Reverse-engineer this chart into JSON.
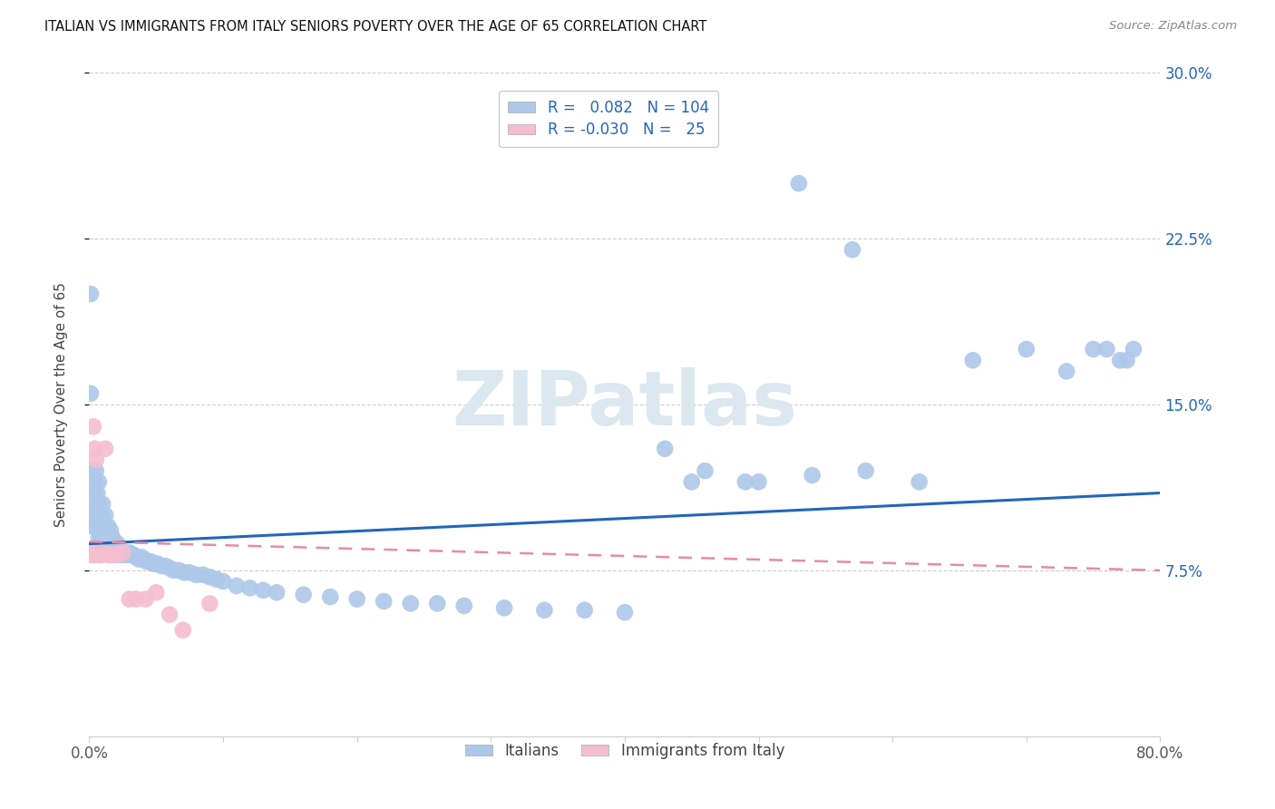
{
  "title": "ITALIAN VS IMMIGRANTS FROM ITALY SENIORS POVERTY OVER THE AGE OF 65 CORRELATION CHART",
  "source": "Source: ZipAtlas.com",
  "ylabel": "Seniors Poverty Over the Age of 65",
  "xlim": [
    0,
    0.8
  ],
  "ylim": [
    0,
    0.3
  ],
  "ytick_pos": [
    0.075,
    0.15,
    0.225,
    0.3
  ],
  "ytick_labels": [
    "7.5%",
    "15.0%",
    "22.5%",
    "30.0%"
  ],
  "xtick_pos": [
    0.0,
    0.1,
    0.2,
    0.3,
    0.4,
    0.5,
    0.6,
    0.7,
    0.8
  ],
  "xtick_labels": [
    "0.0%",
    "",
    "",
    "",
    "",
    "",
    "",
    "",
    "80.0%"
  ],
  "blue_color": "#adc8e8",
  "pink_color": "#f5bdd0",
  "line_blue": "#2266bb",
  "line_pink": "#e88aaa",
  "watermark_color": "#dce8f0",
  "blue_x": [
    0.001,
    0.001,
    0.002,
    0.002,
    0.003,
    0.003,
    0.004,
    0.004,
    0.005,
    0.005,
    0.006,
    0.006,
    0.007,
    0.007,
    0.007,
    0.008,
    0.008,
    0.009,
    0.009,
    0.01,
    0.01,
    0.011,
    0.011,
    0.012,
    0.012,
    0.013,
    0.013,
    0.014,
    0.014,
    0.015,
    0.015,
    0.016,
    0.016,
    0.017,
    0.017,
    0.018,
    0.018,
    0.019,
    0.02,
    0.021,
    0.021,
    0.022,
    0.023,
    0.024,
    0.025,
    0.026,
    0.027,
    0.028,
    0.03,
    0.031,
    0.033,
    0.035,
    0.037,
    0.039,
    0.041,
    0.043,
    0.046,
    0.048,
    0.051,
    0.054,
    0.057,
    0.06,
    0.063,
    0.067,
    0.071,
    0.075,
    0.08,
    0.085,
    0.09,
    0.095,
    0.1,
    0.11,
    0.12,
    0.13,
    0.14,
    0.16,
    0.18,
    0.2,
    0.22,
    0.24,
    0.26,
    0.28,
    0.31,
    0.34,
    0.37,
    0.4,
    0.43,
    0.46,
    0.5,
    0.54,
    0.58,
    0.62,
    0.66,
    0.7,
    0.73,
    0.75,
    0.76,
    0.77,
    0.775,
    0.78,
    0.45,
    0.49,
    0.53,
    0.57
  ],
  "blue_y": [
    0.2,
    0.155,
    0.12,
    0.095,
    0.115,
    0.1,
    0.11,
    0.095,
    0.105,
    0.12,
    0.1,
    0.11,
    0.105,
    0.09,
    0.115,
    0.095,
    0.1,
    0.09,
    0.1,
    0.095,
    0.105,
    0.088,
    0.095,
    0.09,
    0.1,
    0.085,
    0.092,
    0.088,
    0.095,
    0.085,
    0.09,
    0.087,
    0.093,
    0.085,
    0.09,
    0.087,
    0.083,
    0.088,
    0.085,
    0.087,
    0.082,
    0.085,
    0.083,
    0.082,
    0.083,
    0.082,
    0.083,
    0.082,
    0.083,
    0.082,
    0.082,
    0.081,
    0.08,
    0.081,
    0.08,
    0.079,
    0.079,
    0.078,
    0.078,
    0.077,
    0.077,
    0.076,
    0.075,
    0.075,
    0.074,
    0.074,
    0.073,
    0.073,
    0.072,
    0.071,
    0.07,
    0.068,
    0.067,
    0.066,
    0.065,
    0.064,
    0.063,
    0.062,
    0.061,
    0.06,
    0.06,
    0.059,
    0.058,
    0.057,
    0.057,
    0.056,
    0.13,
    0.12,
    0.115,
    0.118,
    0.12,
    0.115,
    0.17,
    0.175,
    0.165,
    0.175,
    0.175,
    0.17,
    0.17,
    0.175,
    0.115,
    0.115,
    0.25,
    0.22
  ],
  "pink_x": [
    0.001,
    0.002,
    0.003,
    0.003,
    0.004,
    0.005,
    0.005,
    0.006,
    0.007,
    0.008,
    0.009,
    0.01,
    0.012,
    0.014,
    0.016,
    0.018,
    0.021,
    0.025,
    0.03,
    0.035,
    0.042,
    0.05,
    0.06,
    0.07,
    0.09
  ],
  "pink_y": [
    0.082,
    0.082,
    0.14,
    0.083,
    0.13,
    0.125,
    0.082,
    0.083,
    0.082,
    0.082,
    0.082,
    0.083,
    0.13,
    0.082,
    0.082,
    0.082,
    0.082,
    0.083,
    0.062,
    0.062,
    0.062,
    0.065,
    0.055,
    0.048,
    0.06
  ],
  "blue_line_x0": 0.0,
  "blue_line_x1": 0.8,
  "blue_line_y0": 0.087,
  "blue_line_y1": 0.11,
  "pink_line_x0": 0.0,
  "pink_line_x1": 0.8,
  "pink_line_y0": 0.088,
  "pink_line_y1": 0.075
}
